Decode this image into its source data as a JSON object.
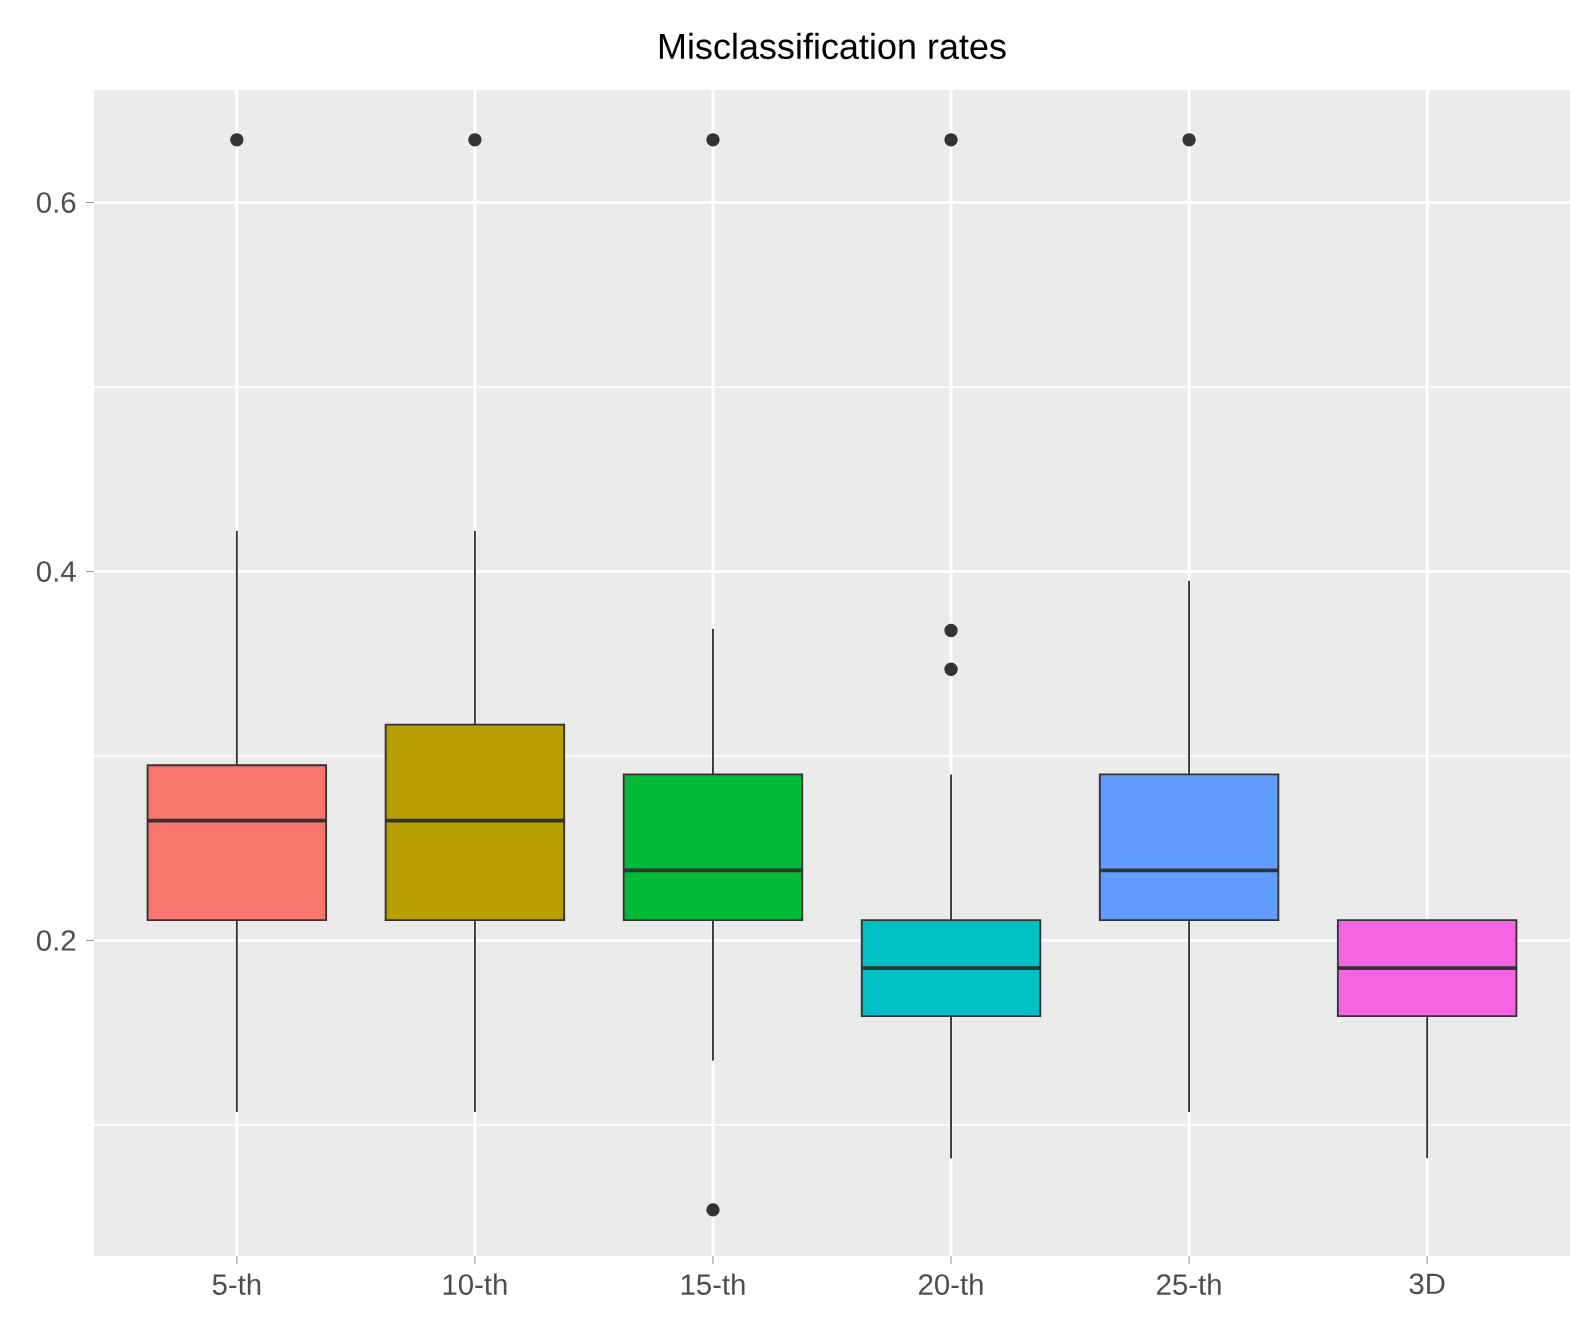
{
  "chart_data": {
    "type": "box",
    "title": "Misclassification rates",
    "categories": [
      "5-th",
      "10-th",
      "15-th",
      "20-th",
      "25-th",
      "3D"
    ],
    "colors": [
      "#f8766d",
      "#b79f00",
      "#00ba38",
      "#00bfc4",
      "#619cff",
      "#f564e3"
    ],
    "boxes": [
      {
        "low": 0.107,
        "q1": 0.211,
        "median": 0.265,
        "q3": 0.295,
        "high": 0.422,
        "outliers": [
          0.634
        ]
      },
      {
        "low": 0.107,
        "q1": 0.211,
        "median": 0.265,
        "q3": 0.317,
        "high": 0.422,
        "outliers": [
          0.634
        ]
      },
      {
        "low": 0.135,
        "q1": 0.211,
        "median": 0.238,
        "q3": 0.29,
        "high": 0.369,
        "outliers": [
          0.634,
          0.054
        ]
      },
      {
        "low": 0.082,
        "q1": 0.159,
        "median": 0.185,
        "q3": 0.211,
        "high": 0.29,
        "outliers": [
          0.634,
          0.368,
          0.347
        ]
      },
      {
        "low": 0.107,
        "q1": 0.211,
        "median": 0.238,
        "q3": 0.29,
        "high": 0.395,
        "outliers": [
          0.634
        ]
      },
      {
        "low": 0.082,
        "q1": 0.159,
        "median": 0.185,
        "q3": 0.211,
        "high": 0.211
      }
    ],
    "ylim": [
      0.029,
      0.661
    ],
    "yticks": [
      {
        "value": 0.1,
        "label": null
      },
      0.2,
      {
        "value": 0.3,
        "label": null
      },
      0.4,
      {
        "value": 0.5,
        "label": null
      },
      0.6
    ],
    "grid": true
  }
}
